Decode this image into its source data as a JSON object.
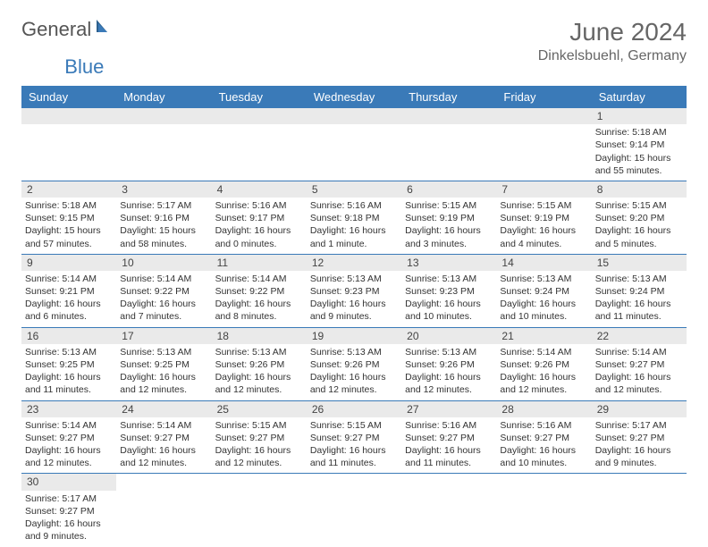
{
  "brand": {
    "word1": "General",
    "word2": "Blue"
  },
  "title": "June 2024",
  "location": "Dinkelsbuehl, Germany",
  "header_color": "#3a7ab8",
  "bar_color": "#eaeaea",
  "weekdays": [
    "Sunday",
    "Monday",
    "Tuesday",
    "Wednesday",
    "Thursday",
    "Friday",
    "Saturday"
  ],
  "weeks": [
    [
      {
        "day": null
      },
      {
        "day": null
      },
      {
        "day": null
      },
      {
        "day": null
      },
      {
        "day": null
      },
      {
        "day": null
      },
      {
        "day": "1",
        "sunrise": "Sunrise: 5:18 AM",
        "sunset": "Sunset: 9:14 PM",
        "daylight": "Daylight: 15 hours and 55 minutes."
      }
    ],
    [
      {
        "day": "2",
        "sunrise": "Sunrise: 5:18 AM",
        "sunset": "Sunset: 9:15 PM",
        "daylight": "Daylight: 15 hours and 57 minutes."
      },
      {
        "day": "3",
        "sunrise": "Sunrise: 5:17 AM",
        "sunset": "Sunset: 9:16 PM",
        "daylight": "Daylight: 15 hours and 58 minutes."
      },
      {
        "day": "4",
        "sunrise": "Sunrise: 5:16 AM",
        "sunset": "Sunset: 9:17 PM",
        "daylight": "Daylight: 16 hours and 0 minutes."
      },
      {
        "day": "5",
        "sunrise": "Sunrise: 5:16 AM",
        "sunset": "Sunset: 9:18 PM",
        "daylight": "Daylight: 16 hours and 1 minute."
      },
      {
        "day": "6",
        "sunrise": "Sunrise: 5:15 AM",
        "sunset": "Sunset: 9:19 PM",
        "daylight": "Daylight: 16 hours and 3 minutes."
      },
      {
        "day": "7",
        "sunrise": "Sunrise: 5:15 AM",
        "sunset": "Sunset: 9:19 PM",
        "daylight": "Daylight: 16 hours and 4 minutes."
      },
      {
        "day": "8",
        "sunrise": "Sunrise: 5:15 AM",
        "sunset": "Sunset: 9:20 PM",
        "daylight": "Daylight: 16 hours and 5 minutes."
      }
    ],
    [
      {
        "day": "9",
        "sunrise": "Sunrise: 5:14 AM",
        "sunset": "Sunset: 9:21 PM",
        "daylight": "Daylight: 16 hours and 6 minutes."
      },
      {
        "day": "10",
        "sunrise": "Sunrise: 5:14 AM",
        "sunset": "Sunset: 9:22 PM",
        "daylight": "Daylight: 16 hours and 7 minutes."
      },
      {
        "day": "11",
        "sunrise": "Sunrise: 5:14 AM",
        "sunset": "Sunset: 9:22 PM",
        "daylight": "Daylight: 16 hours and 8 minutes."
      },
      {
        "day": "12",
        "sunrise": "Sunrise: 5:13 AM",
        "sunset": "Sunset: 9:23 PM",
        "daylight": "Daylight: 16 hours and 9 minutes."
      },
      {
        "day": "13",
        "sunrise": "Sunrise: 5:13 AM",
        "sunset": "Sunset: 9:23 PM",
        "daylight": "Daylight: 16 hours and 10 minutes."
      },
      {
        "day": "14",
        "sunrise": "Sunrise: 5:13 AM",
        "sunset": "Sunset: 9:24 PM",
        "daylight": "Daylight: 16 hours and 10 minutes."
      },
      {
        "day": "15",
        "sunrise": "Sunrise: 5:13 AM",
        "sunset": "Sunset: 9:24 PM",
        "daylight": "Daylight: 16 hours and 11 minutes."
      }
    ],
    [
      {
        "day": "16",
        "sunrise": "Sunrise: 5:13 AM",
        "sunset": "Sunset: 9:25 PM",
        "daylight": "Daylight: 16 hours and 11 minutes."
      },
      {
        "day": "17",
        "sunrise": "Sunrise: 5:13 AM",
        "sunset": "Sunset: 9:25 PM",
        "daylight": "Daylight: 16 hours and 12 minutes."
      },
      {
        "day": "18",
        "sunrise": "Sunrise: 5:13 AM",
        "sunset": "Sunset: 9:26 PM",
        "daylight": "Daylight: 16 hours and 12 minutes."
      },
      {
        "day": "19",
        "sunrise": "Sunrise: 5:13 AM",
        "sunset": "Sunset: 9:26 PM",
        "daylight": "Daylight: 16 hours and 12 minutes."
      },
      {
        "day": "20",
        "sunrise": "Sunrise: 5:13 AM",
        "sunset": "Sunset: 9:26 PM",
        "daylight": "Daylight: 16 hours and 12 minutes."
      },
      {
        "day": "21",
        "sunrise": "Sunrise: 5:14 AM",
        "sunset": "Sunset: 9:26 PM",
        "daylight": "Daylight: 16 hours and 12 minutes."
      },
      {
        "day": "22",
        "sunrise": "Sunrise: 5:14 AM",
        "sunset": "Sunset: 9:27 PM",
        "daylight": "Daylight: 16 hours and 12 minutes."
      }
    ],
    [
      {
        "day": "23",
        "sunrise": "Sunrise: 5:14 AM",
        "sunset": "Sunset: 9:27 PM",
        "daylight": "Daylight: 16 hours and 12 minutes."
      },
      {
        "day": "24",
        "sunrise": "Sunrise: 5:14 AM",
        "sunset": "Sunset: 9:27 PM",
        "daylight": "Daylight: 16 hours and 12 minutes."
      },
      {
        "day": "25",
        "sunrise": "Sunrise: 5:15 AM",
        "sunset": "Sunset: 9:27 PM",
        "daylight": "Daylight: 16 hours and 12 minutes."
      },
      {
        "day": "26",
        "sunrise": "Sunrise: 5:15 AM",
        "sunset": "Sunset: 9:27 PM",
        "daylight": "Daylight: 16 hours and 11 minutes."
      },
      {
        "day": "27",
        "sunrise": "Sunrise: 5:16 AM",
        "sunset": "Sunset: 9:27 PM",
        "daylight": "Daylight: 16 hours and 11 minutes."
      },
      {
        "day": "28",
        "sunrise": "Sunrise: 5:16 AM",
        "sunset": "Sunset: 9:27 PM",
        "daylight": "Daylight: 16 hours and 10 minutes."
      },
      {
        "day": "29",
        "sunrise": "Sunrise: 5:17 AM",
        "sunset": "Sunset: 9:27 PM",
        "daylight": "Daylight: 16 hours and 9 minutes."
      }
    ],
    [
      {
        "day": "30",
        "sunrise": "Sunrise: 5:17 AM",
        "sunset": "Sunset: 9:27 PM",
        "daylight": "Daylight: 16 hours and 9 minutes."
      },
      {
        "day": null
      },
      {
        "day": null
      },
      {
        "day": null
      },
      {
        "day": null
      },
      {
        "day": null
      },
      {
        "day": null
      }
    ]
  ]
}
